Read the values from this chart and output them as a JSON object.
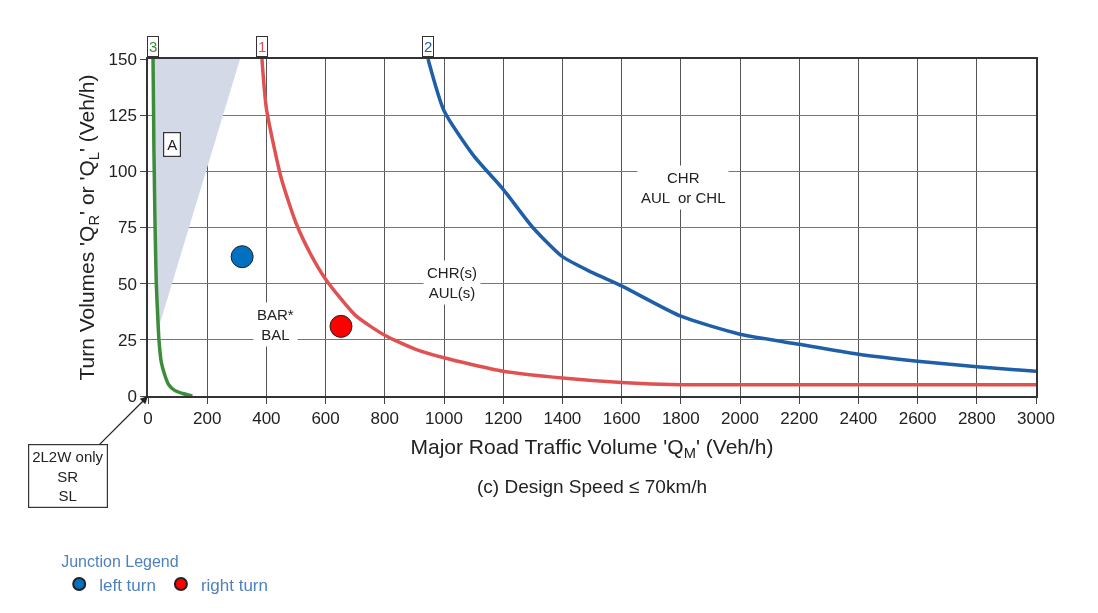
{
  "chart_data": {
    "type": "line",
    "subtitle": "(c) Design Speed ≤ 70km/h",
    "xlabel": "Major Road Traffic Volume 'Q$_{M}$' (Veh/h)",
    "ylabel": "Turn Volumes 'Q$_{R}$' or 'Q$_{L}$' (Veh/h)",
    "legend_title": "Junction Legend",
    "xlim": [
      0,
      3000
    ],
    "xticks": [
      0,
      200,
      400,
      600,
      800,
      1000,
      1200,
      1400,
      1600,
      1800,
      2000,
      2200,
      2400,
      2600,
      2800,
      3000
    ],
    "ylim": [
      0,
      150
    ],
    "yticks": [
      0,
      25,
      50,
      75,
      100,
      125,
      150
    ],
    "grid": true,
    "legend": "bottom left",
    "line_style": "solid",
    "series": [
      {
        "type": "area",
        "color": "#d3d9e6",
        "x": [
          35,
          311,
          20
        ],
        "values": [
          30,
          150,
          150
        ]
      },
      {
        "name": "3",
        "color": "#3c8c3c",
        "x": [
          17,
          20,
          24,
          28,
          33,
          37,
          45,
          55,
          70,
          90,
          120,
          150
        ],
        "values": [
          150,
          110,
          75,
          50,
          35,
          25,
          15,
          10,
          5,
          2.5,
          1,
          0
        ]
      },
      {
        "name": "1",
        "color": "#e05252",
        "x": [
          385,
          400,
          450,
          500,
          550,
          600,
          700,
          800,
          900,
          1000,
          1200,
          1400,
          1600,
          1800,
          2000,
          2500,
          3000
        ],
        "values": [
          150,
          128,
          97,
          77,
          63,
          52,
          36,
          27,
          21,
          17,
          11,
          8,
          6,
          5,
          5,
          5,
          5
        ]
      },
      {
        "name": "2",
        "color": "#1f5fa8",
        "x": [
          946,
          1000,
          1100,
          1200,
          1300,
          1400,
          1500,
          1600,
          1800,
          2000,
          2200,
          2400,
          2600,
          2800,
          3000
        ],
        "values": [
          150,
          127,
          107,
          92,
          75,
          62,
          55,
          49,
          35.5,
          27.5,
          23,
          18.6,
          15.5,
          13,
          11
        ]
      },
      {
        "type": "scatter",
        "name": "left turn",
        "color": "#0070c0",
        "x": [
          318
        ],
        "values": [
          62
        ]
      },
      {
        "type": "scatter",
        "name": "right turn",
        "color": "#ff0000",
        "x": [
          652
        ],
        "values": [
          31
        ]
      }
    ],
    "annotations": [
      {
        "text": "A",
        "x": 80,
        "y": 112
      },
      {
        "text": "BAR*\nBAL",
        "x": 430,
        "y": 32
      },
      "CHR(s)\nAUL(s)",
      "CHR\nAUL  or CHL",
      "2L2W only\nSR\nSL"
    ]
  }
}
